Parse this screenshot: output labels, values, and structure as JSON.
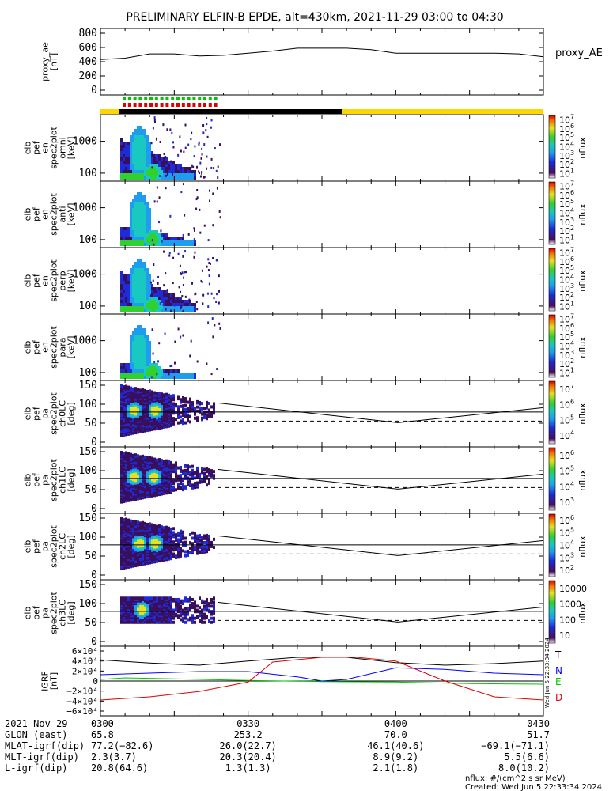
{
  "title": "PRELIMINARY ELFIN-B EPDE, alt=430km, 2021-11-29 03:00 to 04:30",
  "colors": {
    "bar_yellow": "#ffd700",
    "bar_black": "#000000",
    "marker_green": "#00c800",
    "marker_red": "#e00000",
    "trace_T": "#000000",
    "trace_N": "#0000ff",
    "trace_E": "#00c800",
    "trace_D": "#e00000"
  },
  "chart_data": [
    {
      "type": "line",
      "ylabel": "proxy_ae [nT]",
      "yticks": [
        "800",
        "600",
        "400",
        "200",
        "0"
      ],
      "ylim": [
        0,
        800
      ],
      "series_label": "proxy_AE",
      "series": [
        {
          "name": "proxy_AE",
          "x_min": [
            0,
            5,
            10,
            15,
            20,
            25,
            30,
            35,
            40,
            45,
            50,
            55,
            60,
            65,
            70,
            75,
            80,
            85,
            90
          ],
          "values": [
            430,
            450,
            510,
            510,
            480,
            490,
            520,
            550,
            590,
            590,
            590,
            570,
            520,
            520,
            520,
            520,
            520,
            510,
            470
          ]
        }
      ]
    },
    {
      "type": "heatmap",
      "ylabel": "elb pef en spec2plot omni [keV]",
      "yticks": [
        "1000",
        "100"
      ],
      "cbar_label": "nflux",
      "cbar_ticks": [
        "10^7",
        "10^6",
        "10^5",
        "10^4",
        "10^3",
        "10^2",
        "10^1"
      ]
    },
    {
      "type": "heatmap",
      "ylabel": "elb pef en spec2plot anti [keV]",
      "yticks": [
        "1000",
        "100"
      ],
      "cbar_label": "nflux",
      "cbar_ticks": [
        "10^7",
        "10^6",
        "10^5",
        "10^4",
        "10^3",
        "10^2",
        "10^1"
      ]
    },
    {
      "type": "heatmap",
      "ylabel": "elb pef en spec2plot perp [keV]",
      "yticks": [
        "1000",
        "100"
      ],
      "cbar_label": "nflux",
      "cbar_ticks": [
        "10^7",
        "10^6",
        "10^5",
        "10^4",
        "10^3",
        "10^2",
        "10^1"
      ]
    },
    {
      "type": "heatmap",
      "ylabel": "elb pef en spec2plot para [keV]",
      "yticks": [
        "1000",
        "100"
      ],
      "cbar_label": "nflux",
      "cbar_ticks": [
        "10^7",
        "10^6",
        "10^5",
        "10^4",
        "10^3",
        "10^2",
        "10^1"
      ]
    },
    {
      "type": "heatmap",
      "ylabel": "elb pef pa spec2plot ch0LC [deg]",
      "yticks": [
        "150",
        "100",
        "50",
        "0"
      ],
      "cbar_label": "nflux",
      "cbar_ticks": [
        "10^7",
        "10^6",
        "10^5",
        "10^4"
      ]
    },
    {
      "type": "heatmap",
      "ylabel": "elb pef pa spec2plot ch1LC [deg]",
      "yticks": [
        "150",
        "100",
        "50",
        "0"
      ],
      "cbar_label": "nflux",
      "cbar_ticks": [
        "10^6",
        "10^5",
        "10^4",
        "10^3"
      ]
    },
    {
      "type": "heatmap",
      "ylabel": "elb pef pa spec2plot ch2LC [deg]",
      "yticks": [
        "150",
        "100",
        "50",
        "0"
      ],
      "cbar_label": "nflux",
      "cbar_ticks": [
        "10^6",
        "10^5",
        "10^4",
        "10^3",
        "10^2"
      ]
    },
    {
      "type": "heatmap",
      "ylabel": "elb pef pa spec2plot ch3LC [deg]",
      "yticks": [
        "150",
        "100",
        "50",
        "0"
      ],
      "cbar_label": "nflux",
      "cbar_ticks": [
        "10000",
        "1000",
        "100",
        "10"
      ]
    },
    {
      "type": "line",
      "ylabel": "IGRF [nT]",
      "yticks": [
        "6×10⁴",
        "4×10⁴",
        "2×10⁴",
        "0",
        "−2×10⁴",
        "−4×10⁴",
        "−6×10⁴"
      ],
      "ylim": [
        -60000,
        60000
      ],
      "series": [
        {
          "name": "T",
          "x_min": [
            0,
            10,
            20,
            30,
            40,
            50,
            60,
            70,
            80,
            90
          ],
          "values": [
            40000,
            34000,
            30000,
            38000,
            45000,
            45000,
            35000,
            30000,
            33000,
            38000
          ]
        },
        {
          "name": "N",
          "x_min": [
            0,
            10,
            20,
            30,
            40,
            45,
            50,
            60,
            70,
            80,
            90
          ],
          "values": [
            12000,
            15000,
            18000,
            18000,
            8000,
            0,
            3000,
            25000,
            22000,
            15000,
            12000
          ]
        },
        {
          "name": "E",
          "x_min": [
            0,
            5,
            15,
            30,
            45,
            60,
            75,
            90
          ],
          "values": [
            3000,
            6000,
            4000,
            1000,
            -1000,
            -2000,
            -5000,
            -6000
          ]
        },
        {
          "name": "D",
          "x_min": [
            0,
            10,
            20,
            30,
            35,
            45,
            52,
            60,
            70,
            80,
            90
          ],
          "values": [
            -36000,
            -30000,
            -20000,
            -2000,
            36000,
            45000,
            45000,
            38000,
            0,
            -30000,
            -36000
          ]
        }
      ]
    }
  ],
  "xaxis": {
    "ticks": [
      "0300",
      "0330",
      "0400",
      "0430"
    ],
    "rows": [
      {
        "label": "2021 Nov 29",
        "values": [
          "0300",
          "0330",
          "0400",
          "0430"
        ]
      },
      {
        "label": "GLON (east)",
        "values": [
          "65.8",
          "253.2",
          "70.0",
          "51.7"
        ]
      },
      {
        "label": "MLAT-igrf(dip)",
        "values": [
          "77.2(−82.6)",
          "26.0(22.7)",
          "46.1(40.6)",
          "−69.1(−71.1)"
        ]
      },
      {
        "label": "MLT-igrf(dip)",
        "values": [
          "2.3(3.7)",
          "20.3(20.4)",
          "8.9(9.2)",
          "5.5(6.6)"
        ]
      },
      {
        "label": "L-igrf(dip)",
        "values": [
          "20.8(64.6)",
          "1.3(1.3)",
          "2.1(1.8)",
          "8.0(10.2)"
        ]
      }
    ]
  },
  "footer": {
    "units": "nflux: #/(cm^2 s sr MeV)",
    "created": "Created: Wed Jun  5 22:33:34 2024",
    "side_stamp": "Wed Jun  5 22:33:34 2024"
  }
}
